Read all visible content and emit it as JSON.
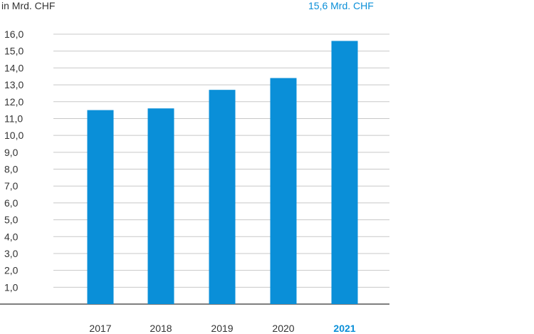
{
  "chart_data": {
    "type": "bar",
    "unit_label": "in Mrd. CHF",
    "highlight_label": "15,6 Mrd. CHF",
    "categories": [
      "2017",
      "2018",
      "2019",
      "2020",
      "2021"
    ],
    "highlight_category": "2021",
    "values": [
      11.5,
      11.6,
      12.7,
      13.4,
      15.6
    ],
    "ylim": [
      0,
      16
    ],
    "yticks": [
      "1,0",
      "2,0",
      "3,0",
      "4,0",
      "5,0",
      "6,0",
      "7,0",
      "8,0",
      "9,0",
      "10,0",
      "11,0",
      "12,0",
      "13,0",
      "14,0",
      "15,0",
      "16,0"
    ],
    "grid": true,
    "colors": {
      "bar": "#0a8fd8",
      "accent": "#0a8fd8",
      "grid": "#c8c8c8",
      "axis": "#555555",
      "text": "#333333"
    }
  }
}
